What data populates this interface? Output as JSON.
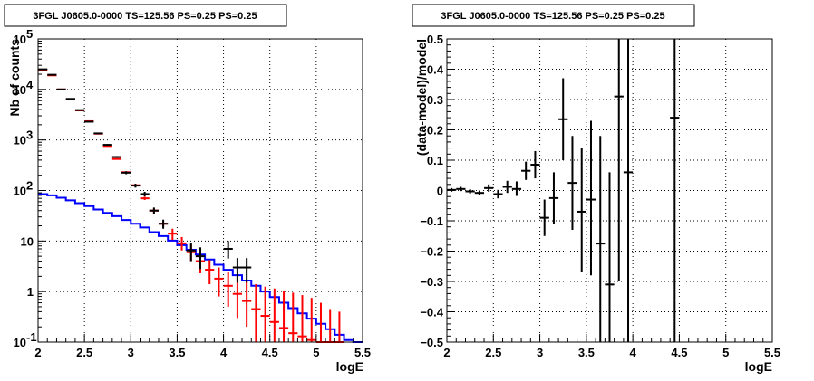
{
  "chart_data": [
    {
      "type": "step+errorbar",
      "title": "3FGL J0605.0-0000 TS=125.56 PS=0.25 PS=0.25",
      "xlabel": "logE",
      "ylabel": "Nb of counts",
      "xlim": [
        2,
        5.5
      ],
      "ylim": [
        0.1,
        100000
      ],
      "log_y": true,
      "grid": true,
      "x_ticks": [
        2,
        2.5,
        3,
        3.5,
        4,
        4.5,
        5,
        5.5
      ],
      "x_tick_labels": [
        "2",
        "2.5",
        "3",
        "3.5",
        "4",
        "4.5",
        "5",
        "5.5"
      ],
      "y_ticks": [
        0.1,
        1,
        10,
        100,
        1000,
        10000,
        100000
      ],
      "y_tick_labels": [
        {
          "base": "10",
          "exp": "-1"
        },
        {
          "base": "1",
          "exp": ""
        },
        {
          "base": "10",
          "exp": ""
        },
        {
          "base": "10",
          "exp": "2"
        },
        {
          "base": "10",
          "exp": "3"
        },
        {
          "base": "10",
          "exp": "4"
        },
        {
          "base": "10",
          "exp": "5"
        }
      ],
      "bin_width": 0.1,
      "series": [
        {
          "kind": "data",
          "color": "#000000",
          "points": [
            {
              "x": 2.05,
              "y": 25000,
              "ylo": 24800,
              "yhi": 25200
            },
            {
              "x": 2.15,
              "y": 19500,
              "ylo": 19300,
              "yhi": 19700
            },
            {
              "x": 2.25,
              "y": 10000,
              "ylo": 9900,
              "yhi": 10100
            },
            {
              "x": 2.35,
              "y": 6500,
              "ylo": 6400,
              "yhi": 6600
            },
            {
              "x": 2.45,
              "y": 3900,
              "ylo": 3840,
              "yhi": 3960
            },
            {
              "x": 2.55,
              "y": 2300,
              "ylo": 2250,
              "yhi": 2350
            },
            {
              "x": 2.65,
              "y": 1350,
              "ylo": 1310,
              "yhi": 1390
            },
            {
              "x": 2.75,
              "y": 800,
              "ylo": 770,
              "yhi": 830
            },
            {
              "x": 2.85,
              "y": 460,
              "ylo": 440,
              "yhi": 480
            },
            {
              "x": 2.95,
              "y": 225,
              "ylo": 210,
              "yhi": 240
            },
            {
              "x": 3.05,
              "y": 125,
              "ylo": 114,
              "yhi": 136
            },
            {
              "x": 3.15,
              "y": 85,
              "ylo": 76,
              "yhi": 94
            },
            {
              "x": 3.25,
              "y": 40,
              "ylo": 34,
              "yhi": 46
            },
            {
              "x": 3.35,
              "y": 22,
              "ylo": 17.5,
              "yhi": 26.5
            },
            {
              "x": 3.65,
              "y": 6.5,
              "ylo": 4,
              "yhi": 9
            },
            {
              "x": 3.75,
              "y": 5,
              "ylo": 2.8,
              "yhi": 7.5
            },
            {
              "x": 4.05,
              "y": 7,
              "ylo": 4.5,
              "yhi": 10
            },
            {
              "x": 4.15,
              "y": 3,
              "ylo": 1.5,
              "yhi": 4.6
            },
            {
              "x": 4.25,
              "y": 3,
              "ylo": 1.5,
              "yhi": 4.6
            }
          ]
        },
        {
          "kind": "model",
          "color": "#ff0000",
          "points": [
            {
              "x": 2.05,
              "y": 24500,
              "ylo": 24500,
              "yhi": 24500
            },
            {
              "x": 2.15,
              "y": 19000,
              "ylo": 19000,
              "yhi": 19000
            },
            {
              "x": 2.25,
              "y": 10000,
              "ylo": 10000,
              "yhi": 10000
            },
            {
              "x": 2.35,
              "y": 6400,
              "ylo": 6400,
              "yhi": 6400
            },
            {
              "x": 2.45,
              "y": 3850,
              "ylo": 3850,
              "yhi": 3850
            },
            {
              "x": 2.55,
              "y": 2350,
              "ylo": 2350,
              "yhi": 2350
            },
            {
              "x": 2.65,
              "y": 1330,
              "ylo": 1330,
              "yhi": 1330
            },
            {
              "x": 2.75,
              "y": 760,
              "ylo": 760,
              "yhi": 760
            },
            {
              "x": 2.85,
              "y": 420,
              "ylo": 420,
              "yhi": 420
            },
            {
              "x": 2.95,
              "y": 230,
              "ylo": 230,
              "yhi": 230
            },
            {
              "x": 3.05,
              "y": 127,
              "ylo": 127,
              "yhi": 127
            },
            {
              "x": 3.15,
              "y": 70,
              "ylo": 65,
              "yhi": 75
            },
            {
              "x": 3.25,
              "y": 40,
              "ylo": 36,
              "yhi": 44
            },
            {
              "x": 3.35,
              "y": 22,
              "ylo": 19,
              "yhi": 25
            },
            {
              "x": 3.45,
              "y": 14,
              "ylo": 10.5,
              "yhi": 17.5
            },
            {
              "x": 3.55,
              "y": 9,
              "ylo": 6.5,
              "yhi": 12
            },
            {
              "x": 3.65,
              "y": 6,
              "ylo": 4,
              "yhi": 8.5
            },
            {
              "x": 3.75,
              "y": 4,
              "ylo": 2.3,
              "yhi": 5.8
            },
            {
              "x": 3.85,
              "y": 2.7,
              "ylo": 1.4,
              "yhi": 4.2
            },
            {
              "x": 3.95,
              "y": 1.8,
              "ylo": 0.8,
              "yhi": 3.0
            },
            {
              "x": 4.05,
              "y": 1.3,
              "ylo": 0.5,
              "yhi": 2.4
            },
            {
              "x": 4.15,
              "y": 0.9,
              "ylo": 0.3,
              "yhi": 1.9
            },
            {
              "x": 4.25,
              "y": 0.65,
              "ylo": 0.2,
              "yhi": 1.6
            },
            {
              "x": 4.35,
              "y": 0.45,
              "ylo": 0.1,
              "yhi": 1.4
            },
            {
              "x": 4.45,
              "y": 0.33,
              "ylo": 0.1,
              "yhi": 1.25
            },
            {
              "x": 4.55,
              "y": 0.25,
              "ylo": 0.1,
              "yhi": 1.15
            },
            {
              "x": 4.65,
              "y": 0.19,
              "ylo": 0.1,
              "yhi": 1.05
            },
            {
              "x": 4.75,
              "y": 0.15,
              "ylo": 0.1,
              "yhi": 0.95
            },
            {
              "x": 4.85,
              "y": 0.13,
              "ylo": 0.1,
              "yhi": 0.85
            },
            {
              "x": 4.95,
              "y": 0.11,
              "ylo": 0.1,
              "yhi": 0.75
            },
            {
              "x": 5.05,
              "y": 0.1,
              "ylo": 0.1,
              "yhi": 0.6
            },
            {
              "x": 5.15,
              "y": 0.1,
              "ylo": 0.1,
              "yhi": 0.45
            },
            {
              "x": 5.25,
              "y": 0.1,
              "ylo": 0.1,
              "yhi": 0.4
            }
          ]
        },
        {
          "kind": "step",
          "color": "#0000ff",
          "edges": [
            2.0,
            2.1,
            2.2,
            2.3,
            2.4,
            2.5,
            2.6,
            2.7,
            2.8,
            2.9,
            3.0,
            3.1,
            3.2,
            3.3,
            3.4,
            3.5,
            3.6,
            3.7,
            3.8,
            3.9,
            4.0,
            4.1,
            4.2,
            4.3,
            4.4,
            4.5,
            4.6,
            4.7,
            4.8,
            4.9,
            5.0,
            5.1,
            5.2,
            5.3,
            5.4,
            5.5
          ],
          "values": [
            85,
            80,
            72,
            64,
            56,
            49,
            42,
            36,
            31,
            26,
            22,
            18.5,
            15,
            12.5,
            10.2,
            8.3,
            6.7,
            5.4,
            4.3,
            3.4,
            2.7,
            2.1,
            1.65,
            1.3,
            1.0,
            0.78,
            0.6,
            0.47,
            0.37,
            0.29,
            0.23,
            0.18,
            0.14,
            0.11,
            0.1
          ]
        }
      ]
    },
    {
      "type": "errorbar",
      "title": "3FGL J0605.0-0000 TS=125.56 PS=0.25 PS=0.25",
      "xlabel": "logE",
      "ylabel": "(data-model)/model",
      "xlim": [
        2,
        5.5
      ],
      "ylim": [
        -0.5,
        0.5
      ],
      "grid": true,
      "x_ticks": [
        2,
        2.5,
        3,
        3.5,
        4,
        4.5,
        5,
        5.5
      ],
      "x_tick_labels": [
        "2",
        "2.5",
        "3",
        "3.5",
        "4",
        "4.5",
        "5",
        "5.5"
      ],
      "y_ticks": [
        -0.5,
        -0.4,
        -0.3,
        -0.2,
        -0.1,
        0,
        0.1,
        0.2,
        0.3,
        0.4,
        0.5
      ],
      "y_tick_labels": [
        "−0.5",
        "−0.4",
        "−0.3",
        "−0.2",
        "−0.1",
        "0",
        "0.1",
        "0.2",
        "0.3",
        "0.4",
        "0.5"
      ],
      "bin_width": 0.1,
      "points": [
        {
          "x": 2.05,
          "y": 0.002,
          "ylo": -0.004,
          "yhi": 0.008
        },
        {
          "x": 2.15,
          "y": 0.005,
          "ylo": -0.002,
          "yhi": 0.012
        },
        {
          "x": 2.25,
          "y": -0.003,
          "ylo": -0.01,
          "yhi": 0.004
        },
        {
          "x": 2.35,
          "y": -0.008,
          "ylo": -0.016,
          "yhi": 0.0
        },
        {
          "x": 2.45,
          "y": 0.008,
          "ylo": -0.004,
          "yhi": 0.02
        },
        {
          "x": 2.55,
          "y": -0.012,
          "ylo": -0.026,
          "yhi": 0.002
        },
        {
          "x": 2.65,
          "y": 0.012,
          "ylo": -0.008,
          "yhi": 0.032
        },
        {
          "x": 2.75,
          "y": 0.005,
          "ylo": -0.018,
          "yhi": 0.03
        },
        {
          "x": 2.85,
          "y": 0.065,
          "ylo": 0.035,
          "yhi": 0.095
        },
        {
          "x": 2.95,
          "y": 0.085,
          "ylo": 0.04,
          "yhi": 0.13
        },
        {
          "x": 3.05,
          "y": -0.09,
          "ylo": -0.15,
          "yhi": -0.03
        },
        {
          "x": 3.15,
          "y": -0.025,
          "ylo": -0.11,
          "yhi": 0.06
        },
        {
          "x": 3.25,
          "y": 0.235,
          "ylo": 0.1,
          "yhi": 0.37
        },
        {
          "x": 3.35,
          "y": 0.025,
          "ylo": -0.13,
          "yhi": 0.18
        },
        {
          "x": 3.45,
          "y": -0.07,
          "ylo": -0.27,
          "yhi": 0.14
        },
        {
          "x": 3.55,
          "y": -0.03,
          "ylo": -0.28,
          "yhi": 0.23
        },
        {
          "x": 3.65,
          "y": -0.175,
          "ylo": -0.5,
          "yhi": 0.18
        },
        {
          "x": 3.75,
          "y": -0.31,
          "ylo": -0.5,
          "yhi": 0.06
        },
        {
          "x": 3.85,
          "y": 0.31,
          "ylo": -0.3,
          "yhi": 0.5
        },
        {
          "x": 3.95,
          "y": 0.06,
          "ylo": -0.5,
          "yhi": 0.5
        },
        {
          "x": 4.45,
          "y": 0.24,
          "ylo": -0.5,
          "yhi": 0.5
        }
      ]
    }
  ]
}
